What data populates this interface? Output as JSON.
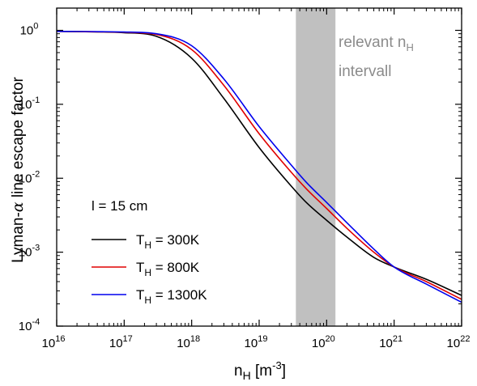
{
  "chart_data": {
    "type": "line",
    "xlabel": {
      "base": "n",
      "sub": "H",
      "unit_pre": " [m",
      "unit_sup": "-3",
      "unit_post": "]"
    },
    "ylabel": {
      "pre": "Lyman-",
      "greek": "α",
      "post": " line escape factor"
    },
    "x_scale": "log",
    "y_scale": "log",
    "xlim": [
      1e+16,
      1e+22
    ],
    "ylim": [
      0.0001,
      2
    ],
    "x_ticks": [
      {
        "value": 1e+16,
        "base": "10",
        "exp": "16"
      },
      {
        "value": 1e+17,
        "base": "10",
        "exp": "17"
      },
      {
        "value": 1e+18,
        "base": "10",
        "exp": "18"
      },
      {
        "value": 1e+19,
        "base": "10",
        "exp": "19"
      },
      {
        "value": 1e+20,
        "base": "10",
        "exp": "20"
      },
      {
        "value": 1e+21,
        "base": "10",
        "exp": "21"
      },
      {
        "value": 1e+22,
        "base": "10",
        "exp": "22"
      }
    ],
    "y_ticks": [
      {
        "value": 0.0001,
        "base": "10",
        "exp": "-4"
      },
      {
        "value": 0.001,
        "base": "10",
        "exp": "-3"
      },
      {
        "value": 0.01,
        "base": "10",
        "exp": "-2"
      },
      {
        "value": 0.1,
        "base": "10",
        "exp": "-1"
      },
      {
        "value": 1,
        "base": "10",
        "exp": "0"
      }
    ],
    "shaded_band": {
      "x_range": [
        3.5e+19,
        1.35e+20
      ],
      "color": "#c0c0c0",
      "label_line1_text": "relevant n",
      "label_line1_sub": "H",
      "label_line2": "intervall"
    },
    "annotation": "l = 15 cm",
    "legend_position": "lower-left",
    "series": [
      {
        "name_pre": "T",
        "name_sub": "H",
        "name_post": " = 300K",
        "color": "#000000",
        "x": [
          1e+16,
          1e+17,
          3e+17,
          1e+18,
          3e+18,
          1e+19,
          3e+19,
          5e+19,
          1e+20,
          2e+20,
          5e+20,
          1e+21,
          3e+21,
          1e+22
        ],
        "y": [
          0.97,
          0.93,
          0.83,
          0.42,
          0.12,
          0.026,
          0.0078,
          0.0047,
          0.0027,
          0.0016,
          0.00085,
          0.00063,
          0.00043,
          0.00026
        ]
      },
      {
        "name_pre": "T",
        "name_sub": "H",
        "name_post": " = 800K",
        "color": "#e00000",
        "x": [
          1e+16,
          1e+17,
          3e+17,
          1e+18,
          3e+18,
          1e+19,
          3e+19,
          5e+19,
          1e+20,
          2e+20,
          5e+20,
          1e+21,
          3e+21,
          1e+22
        ],
        "y": [
          0.97,
          0.94,
          0.88,
          0.55,
          0.18,
          0.04,
          0.012,
          0.0072,
          0.0039,
          0.0021,
          0.001,
          0.00063,
          0.0004,
          0.00023
        ]
      },
      {
        "name_pre": "T",
        "name_sub": "H",
        "name_post": " = 1300K",
        "color": "#0000ee",
        "x": [
          1e+16,
          1e+17,
          3e+17,
          1e+18,
          3e+18,
          1e+19,
          3e+19,
          5e+19,
          1e+20,
          2e+20,
          5e+20,
          1e+21,
          3e+21,
          1e+22
        ],
        "y": [
          0.97,
          0.95,
          0.9,
          0.62,
          0.22,
          0.05,
          0.015,
          0.0088,
          0.0047,
          0.0025,
          0.0011,
          0.00063,
          0.00037,
          0.00021
        ]
      }
    ]
  }
}
